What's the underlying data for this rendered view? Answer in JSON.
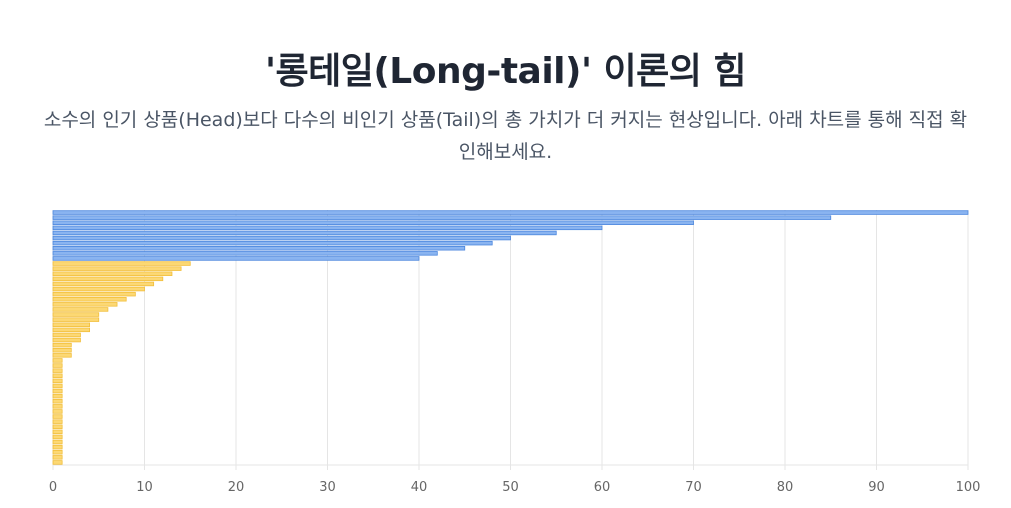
{
  "header": {
    "title": "'롱테일(Long-tail)' 이론의 힘",
    "subtitle": "소수의 인기 상품(Head)보다 다수의 비인기 상품(Tail)의 총 가치가 더 커지는 현상입니다. 아래 차트를 통해 직접 확인해보세요."
  },
  "colors": {
    "head_fill": "#8ab4f0",
    "head_border": "#4a86de",
    "tail_fill": "#fcd874",
    "tail_border": "#f2be3a",
    "grid": "#e5e5e5"
  },
  "chart_data": {
    "type": "bar",
    "orientation": "horizontal",
    "xlim": [
      0,
      100
    ],
    "xticks": [
      0,
      10,
      20,
      30,
      40,
      50,
      60,
      70,
      80,
      90,
      100
    ],
    "xlabel": "",
    "grid": true,
    "series": [
      {
        "group": "head",
        "values": [
          100,
          85,
          70,
          60,
          55,
          50,
          48,
          45,
          42,
          40
        ]
      },
      {
        "group": "tail",
        "values": [
          15,
          14,
          13,
          12,
          11,
          10,
          9,
          8,
          7,
          6,
          5,
          5,
          4,
          4,
          3,
          3,
          2,
          2,
          2,
          1,
          1,
          1,
          1,
          1,
          1,
          1,
          1,
          1,
          1,
          1,
          1,
          1,
          1,
          1,
          1,
          1,
          1,
          1,
          1,
          1
        ]
      }
    ]
  }
}
